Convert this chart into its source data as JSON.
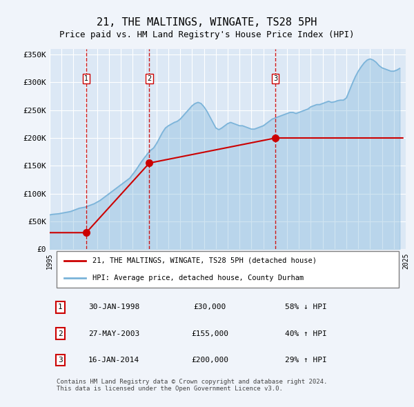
{
  "title": "21, THE MALTINGS, WINGATE, TS28 5PH",
  "subtitle": "Price paid vs. HM Land Registry's House Price Index (HPI)",
  "legend_line1": "21, THE MALTINGS, WINGATE, TS28 5PH (detached house)",
  "legend_line2": "HPI: Average price, detached house, County Durham",
  "footnote": "Contains HM Land Registry data © Crown copyright and database right 2024.\nThis data is licensed under the Open Government Licence v3.0.",
  "sales": [
    {
      "num": 1,
      "date": "30-JAN-1998",
      "price": 30000,
      "pct": "58%",
      "dir": "↓",
      "year": 1998.08
    },
    {
      "num": 2,
      "date": "27-MAY-2003",
      "price": 155000,
      "pct": "40%",
      "dir": "↑",
      "year": 2003.4
    },
    {
      "num": 3,
      "date": "16-JAN-2014",
      "price": 200000,
      "pct": "29%",
      "dir": "↑",
      "year": 2014.04
    }
  ],
  "hpi_years": [
    1995.0,
    1995.25,
    1995.5,
    1995.75,
    1996.0,
    1996.25,
    1996.5,
    1996.75,
    1997.0,
    1997.25,
    1997.5,
    1997.75,
    1998.0,
    1998.25,
    1998.5,
    1998.75,
    1999.0,
    1999.25,
    1999.5,
    1999.75,
    2000.0,
    2000.25,
    2000.5,
    2000.75,
    2001.0,
    2001.25,
    2001.5,
    2001.75,
    2002.0,
    2002.25,
    2002.5,
    2002.75,
    2003.0,
    2003.25,
    2003.5,
    2003.75,
    2004.0,
    2004.25,
    2004.5,
    2004.75,
    2005.0,
    2005.25,
    2005.5,
    2005.75,
    2006.0,
    2006.25,
    2006.5,
    2006.75,
    2007.0,
    2007.25,
    2007.5,
    2007.75,
    2008.0,
    2008.25,
    2008.5,
    2008.75,
    2009.0,
    2009.25,
    2009.5,
    2009.75,
    2010.0,
    2010.25,
    2010.5,
    2010.75,
    2011.0,
    2011.25,
    2011.5,
    2011.75,
    2012.0,
    2012.25,
    2012.5,
    2012.75,
    2013.0,
    2013.25,
    2013.5,
    2013.75,
    2014.0,
    2014.25,
    2014.5,
    2014.75,
    2015.0,
    2015.25,
    2015.5,
    2015.75,
    2016.0,
    2016.25,
    2016.5,
    2016.75,
    2017.0,
    2017.25,
    2017.5,
    2017.75,
    2018.0,
    2018.25,
    2018.5,
    2018.75,
    2019.0,
    2019.25,
    2019.5,
    2019.75,
    2020.0,
    2020.25,
    2020.5,
    2020.75,
    2021.0,
    2021.25,
    2021.5,
    2021.75,
    2022.0,
    2022.25,
    2022.5,
    2022.75,
    2023.0,
    2023.25,
    2023.5,
    2023.75,
    2024.0,
    2024.25,
    2024.5
  ],
  "hpi_values": [
    62000,
    63000,
    63500,
    64000,
    65000,
    66000,
    67000,
    68000,
    70000,
    72000,
    74000,
    75000,
    76000,
    78000,
    80000,
    82000,
    85000,
    88000,
    92000,
    96000,
    100000,
    104000,
    108000,
    112000,
    116000,
    120000,
    124000,
    128000,
    135000,
    142000,
    150000,
    158000,
    165000,
    172000,
    178000,
    182000,
    190000,
    200000,
    210000,
    218000,
    222000,
    225000,
    228000,
    230000,
    234000,
    240000,
    246000,
    252000,
    258000,
    262000,
    264000,
    262000,
    256000,
    248000,
    238000,
    228000,
    218000,
    215000,
    218000,
    222000,
    226000,
    228000,
    226000,
    224000,
    222000,
    222000,
    220000,
    218000,
    216000,
    216000,
    218000,
    220000,
    222000,
    226000,
    230000,
    234000,
    236000,
    238000,
    240000,
    242000,
    244000,
    246000,
    246000,
    244000,
    246000,
    248000,
    250000,
    252000,
    256000,
    258000,
    260000,
    260000,
    262000,
    264000,
    266000,
    264000,
    265000,
    267000,
    268000,
    268000,
    272000,
    285000,
    298000,
    310000,
    320000,
    328000,
    335000,
    340000,
    342000,
    340000,
    336000,
    330000,
    326000,
    324000,
    322000,
    320000,
    320000,
    322000,
    325000
  ],
  "property_years": [
    1995.0,
    1998.08,
    1998.08,
    2003.4,
    2003.4,
    2014.04,
    2014.04,
    2024.75
  ],
  "property_values": [
    30000,
    30000,
    30000,
    155000,
    155000,
    200000,
    200000,
    200000
  ],
  "sale_marker_years": [
    1998.08,
    2003.4,
    2014.04
  ],
  "sale_marker_values": [
    30000,
    155000,
    200000
  ],
  "ylim": [
    0,
    360000
  ],
  "xlim": [
    1995.0,
    2025.0
  ],
  "yticks": [
    0,
    50000,
    100000,
    150000,
    200000,
    250000,
    300000,
    350000
  ],
  "ytick_labels": [
    "£0",
    "£50K",
    "£100K",
    "£150K",
    "£200K",
    "£250K",
    "£300K",
    "£350K"
  ],
  "xticks": [
    1995,
    1996,
    1997,
    1998,
    1999,
    2000,
    2001,
    2002,
    2003,
    2004,
    2005,
    2006,
    2007,
    2008,
    2009,
    2010,
    2011,
    2012,
    2013,
    2014,
    2015,
    2016,
    2017,
    2018,
    2019,
    2020,
    2021,
    2022,
    2023,
    2024,
    2025
  ],
  "bg_color": "#f0f4fa",
  "plot_bg": "#dce8f5",
  "hpi_color": "#7ab3d9",
  "property_color": "#cc0000",
  "dashed_color": "#cc0000",
  "marker_color": "#cc0000",
  "grid_color": "#ffffff",
  "table_border_color": "#cc0000"
}
